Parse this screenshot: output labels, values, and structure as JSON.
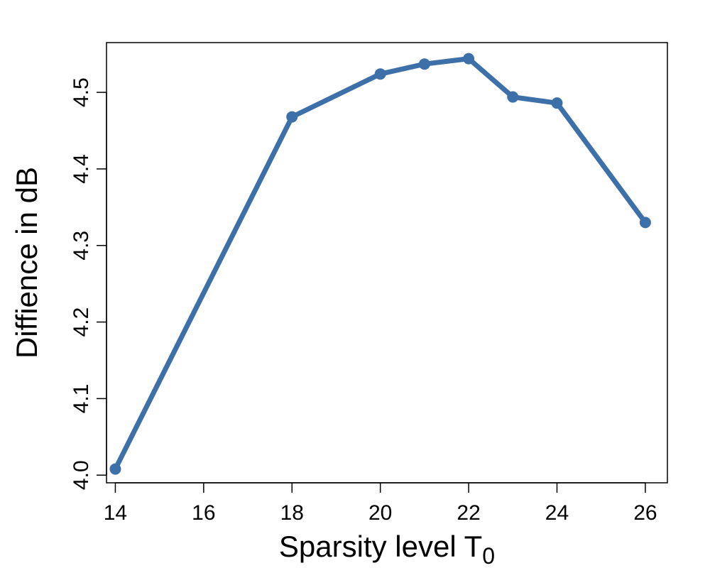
{
  "chart_data": {
    "type": "line",
    "title": "",
    "xlabel": "Sparsity level T",
    "xlabel_subscript": "0",
    "ylabel": "Diffience in dB",
    "x": [
      14,
      18,
      20,
      21,
      22,
      23,
      24,
      26
    ],
    "series": [
      {
        "values": [
          4.008,
          4.468,
          4.524,
          4.537,
          4.544,
          4.494,
          4.486,
          4.33
        ],
        "color": "#3d6fa8"
      }
    ],
    "xlim": [
      13.8,
      26.5
    ],
    "ylim": [
      3.99,
      4.565
    ],
    "xticks": [
      14,
      16,
      18,
      20,
      22,
      24,
      26
    ],
    "yticks": [
      4.0,
      4.1,
      4.2,
      4.3,
      4.4,
      4.5
    ],
    "ytick_labels": [
      "4.0",
      "4.1",
      "4.2",
      "4.3",
      "4.4",
      "4.5"
    ],
    "grid": false,
    "legend": "none"
  }
}
